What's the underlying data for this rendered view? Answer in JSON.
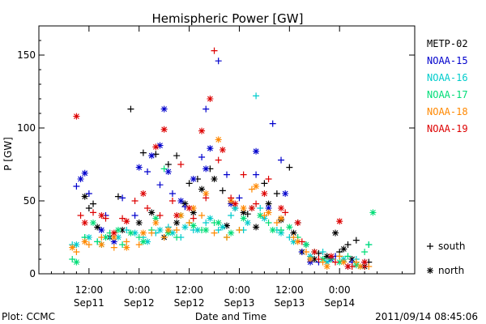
{
  "chart_data": {
    "type": "scatter",
    "title": "Hemispheric Power [GW]",
    "ylabel": "P [GW]",
    "xlabel": "Date and Time",
    "ylim": [
      0,
      170
    ],
    "yticks": [
      0,
      50,
      100,
      150
    ],
    "xlim": [
      0,
      90
    ],
    "xticks": [
      {
        "t": 12,
        "time": "12:00",
        "date": "Sep11"
      },
      {
        "t": 24,
        "time": "0:00",
        "date": "Sep12"
      },
      {
        "t": 36,
        "time": "12:00",
        "date": "Sep12"
      },
      {
        "t": 48,
        "time": "0:00",
        "date": "Sep13"
      },
      {
        "t": 60,
        "time": "12:00",
        "date": "Sep13"
      },
      {
        "t": 72,
        "time": "0:00",
        "date": "Sep14"
      }
    ],
    "grid": false,
    "legend_position": "right",
    "marker_legend": [
      {
        "marker": "+",
        "label": "south"
      },
      {
        "marker": "*",
        "label": "north"
      }
    ],
    "series": [
      {
        "name": "METP-02",
        "color": "#000000",
        "south": [
          [
            12,
            45
          ],
          [
            13,
            48
          ],
          [
            19,
            53
          ],
          [
            22,
            113
          ],
          [
            25,
            83
          ],
          [
            28,
            82
          ],
          [
            31,
            75
          ],
          [
            33,
            81
          ],
          [
            36,
            62
          ],
          [
            38,
            65
          ],
          [
            41,
            72
          ],
          [
            44,
            57
          ],
          [
            47,
            45
          ],
          [
            50,
            41
          ],
          [
            54,
            62
          ],
          [
            57,
            55
          ],
          [
            60,
            73
          ],
          [
            62,
            35
          ],
          [
            64,
            20
          ],
          [
            67,
            14
          ],
          [
            70,
            10
          ],
          [
            72,
            15
          ],
          [
            74,
            20
          ],
          [
            76,
            23
          ],
          [
            79,
            8
          ]
        ],
        "north": [
          [
            11,
            53
          ],
          [
            14,
            32
          ],
          [
            17,
            25
          ],
          [
            20,
            30
          ],
          [
            24,
            35
          ],
          [
            27,
            42
          ],
          [
            30,
            25
          ],
          [
            33,
            35
          ],
          [
            35,
            48
          ],
          [
            37,
            42
          ],
          [
            39,
            58
          ],
          [
            42,
            65
          ],
          [
            45,
            33
          ],
          [
            49,
            42
          ],
          [
            52,
            32
          ],
          [
            55,
            48
          ],
          [
            58,
            37
          ],
          [
            61,
            28
          ],
          [
            63,
            15
          ],
          [
            66,
            10
          ],
          [
            69,
            12
          ],
          [
            71,
            28
          ],
          [
            73,
            17
          ],
          [
            75,
            10
          ],
          [
            78,
            5
          ]
        ]
      },
      {
        "name": "NOAA-15",
        "color": "#0000cc",
        "south": [
          [
            9,
            60
          ],
          [
            12,
            55
          ],
          [
            16,
            40
          ],
          [
            20,
            52
          ],
          [
            23,
            40
          ],
          [
            26,
            70
          ],
          [
            29,
            61
          ],
          [
            32,
            55
          ],
          [
            35,
            46
          ],
          [
            39,
            80
          ],
          [
            40,
            113
          ],
          [
            43,
            146
          ],
          [
            45,
            68
          ],
          [
            48,
            52
          ],
          [
            52,
            68
          ],
          [
            56,
            103
          ],
          [
            58,
            78
          ],
          [
            63,
            15
          ],
          [
            67,
            8
          ],
          [
            71,
            12
          ],
          [
            75,
            8
          ],
          [
            78,
            8
          ]
        ],
        "north": [
          [
            10,
            65
          ],
          [
            11,
            69
          ],
          [
            15,
            30
          ],
          [
            18,
            22
          ],
          [
            24,
            73
          ],
          [
            27,
            81
          ],
          [
            29,
            88
          ],
          [
            30,
            113
          ],
          [
            31,
            70
          ],
          [
            34,
            50
          ],
          [
            37,
            65
          ],
          [
            40,
            72
          ],
          [
            41,
            86
          ],
          [
            46,
            48
          ],
          [
            52,
            84
          ],
          [
            55,
            45
          ],
          [
            59,
            55
          ],
          [
            65,
            8
          ],
          [
            70,
            10
          ],
          [
            74,
            5
          ]
        ]
      },
      {
        "name": "NOAA-16",
        "color": "#00cccc",
        "south": [
          [
            8,
            20
          ],
          [
            11,
            25
          ],
          [
            14,
            22
          ],
          [
            17,
            25
          ],
          [
            21,
            30
          ],
          [
            25,
            25
          ],
          [
            28,
            28
          ],
          [
            31,
            32
          ],
          [
            34,
            25
          ],
          [
            37,
            30
          ],
          [
            40,
            35
          ],
          [
            43,
            30
          ],
          [
            46,
            40
          ],
          [
            49,
            30
          ],
          [
            52,
            122
          ],
          [
            53,
            45
          ],
          [
            57,
            30
          ],
          [
            60,
            25
          ],
          [
            64,
            20
          ],
          [
            68,
            15
          ],
          [
            72,
            12
          ],
          [
            76,
            10
          ],
          [
            79,
            20
          ]
        ],
        "north": [
          [
            9,
            20
          ],
          [
            12,
            25
          ],
          [
            15,
            20
          ],
          [
            19,
            25
          ],
          [
            23,
            28
          ],
          [
            26,
            22
          ],
          [
            29,
            30
          ],
          [
            32,
            28
          ],
          [
            35,
            32
          ],
          [
            38,
            30
          ],
          [
            41,
            38
          ],
          [
            44,
            32
          ],
          [
            47,
            45
          ],
          [
            50,
            35
          ],
          [
            54,
            38
          ],
          [
            58,
            28
          ],
          [
            61,
            22
          ],
          [
            65,
            12
          ],
          [
            69,
            8
          ],
          [
            73,
            10
          ],
          [
            77,
            5
          ]
        ]
      },
      {
        "name": "NOAA-17",
        "color": "#00dd77",
        "south": [
          [
            8,
            10
          ],
          [
            11,
            25
          ],
          [
            14,
            22
          ],
          [
            17,
            28
          ],
          [
            20,
            20
          ],
          [
            24,
            25
          ],
          [
            27,
            30
          ],
          [
            30,
            72
          ],
          [
            33,
            25
          ],
          [
            36,
            35
          ],
          [
            39,
            30
          ],
          [
            42,
            35
          ],
          [
            45,
            25
          ],
          [
            48,
            30
          ],
          [
            51,
            45
          ],
          [
            55,
            35
          ],
          [
            58,
            30
          ],
          [
            62,
            25
          ],
          [
            66,
            15
          ],
          [
            70,
            10
          ],
          [
            74,
            12
          ],
          [
            78,
            15
          ],
          [
            79,
            20
          ]
        ],
        "north": [
          [
            9,
            8
          ],
          [
            13,
            35
          ],
          [
            16,
            25
          ],
          [
            19,
            30
          ],
          [
            22,
            28
          ],
          [
            25,
            22
          ],
          [
            28,
            38
          ],
          [
            31,
            28
          ],
          [
            34,
            40
          ],
          [
            37,
            33
          ],
          [
            40,
            30
          ],
          [
            43,
            35
          ],
          [
            46,
            28
          ],
          [
            49,
            38
          ],
          [
            53,
            40
          ],
          [
            56,
            30
          ],
          [
            60,
            32
          ],
          [
            64,
            20
          ],
          [
            68,
            10
          ],
          [
            72,
            8
          ],
          [
            76,
            6
          ],
          [
            80,
            42
          ]
        ]
      },
      {
        "name": "NOAA-18",
        "color": "#ff8800",
        "south": [
          [
            9,
            15
          ],
          [
            12,
            20
          ],
          [
            15,
            25
          ],
          [
            18,
            18
          ],
          [
            21,
            22
          ],
          [
            24,
            20
          ],
          [
            27,
            28
          ],
          [
            30,
            25
          ],
          [
            33,
            30
          ],
          [
            36,
            35
          ],
          [
            39,
            40
          ],
          [
            42,
            28
          ],
          [
            45,
            25
          ],
          [
            48,
            30
          ],
          [
            51,
            58
          ],
          [
            54,
            40
          ],
          [
            57,
            35
          ],
          [
            61,
            25
          ],
          [
            64,
            15
          ],
          [
            68,
            8
          ],
          [
            72,
            12
          ],
          [
            76,
            8
          ],
          [
            79,
            5
          ]
        ],
        "north": [
          [
            8,
            18
          ],
          [
            11,
            22
          ],
          [
            15,
            20
          ],
          [
            18,
            25
          ],
          [
            21,
            18
          ],
          [
            25,
            28
          ],
          [
            28,
            35
          ],
          [
            31,
            30
          ],
          [
            34,
            40
          ],
          [
            37,
            45
          ],
          [
            40,
            55
          ],
          [
            43,
            92
          ],
          [
            46,
            50
          ],
          [
            49,
            45
          ],
          [
            52,
            60
          ],
          [
            55,
            42
          ],
          [
            58,
            38
          ],
          [
            62,
            22
          ],
          [
            65,
            10
          ],
          [
            69,
            5
          ],
          [
            73,
            8
          ],
          [
            77,
            5
          ]
        ]
      },
      {
        "name": "NOAA-19",
        "color": "#dd0000",
        "south": [
          [
            10,
            40
          ],
          [
            13,
            42
          ],
          [
            16,
            38
          ],
          [
            20,
            38
          ],
          [
            23,
            50
          ],
          [
            26,
            45
          ],
          [
            29,
            40
          ],
          [
            32,
            50
          ],
          [
            34,
            75
          ],
          [
            37,
            38
          ],
          [
            40,
            52
          ],
          [
            42,
            153
          ],
          [
            43,
            78
          ],
          [
            46,
            52
          ],
          [
            49,
            68
          ],
          [
            52,
            48
          ],
          [
            55,
            65
          ],
          [
            59,
            42
          ],
          [
            63,
            22
          ],
          [
            67,
            10
          ],
          [
            71,
            8
          ],
          [
            75,
            5
          ],
          [
            78,
            5
          ]
        ],
        "north": [
          [
            9,
            108
          ],
          [
            11,
            35
          ],
          [
            15,
            40
          ],
          [
            18,
            28
          ],
          [
            21,
            36
          ],
          [
            25,
            55
          ],
          [
            28,
            87
          ],
          [
            30,
            99
          ],
          [
            33,
            40
          ],
          [
            36,
            45
          ],
          [
            39,
            98
          ],
          [
            41,
            120
          ],
          [
            44,
            85
          ],
          [
            47,
            48
          ],
          [
            51,
            45
          ],
          [
            54,
            55
          ],
          [
            58,
            45
          ],
          [
            62,
            35
          ],
          [
            66,
            15
          ],
          [
            70,
            12
          ],
          [
            72,
            36
          ],
          [
            74,
            5
          ],
          [
            78,
            8
          ]
        ]
      }
    ],
    "footer_left": "Plot: CCMC",
    "footer_right": "2011/09/14 08:45:06"
  }
}
